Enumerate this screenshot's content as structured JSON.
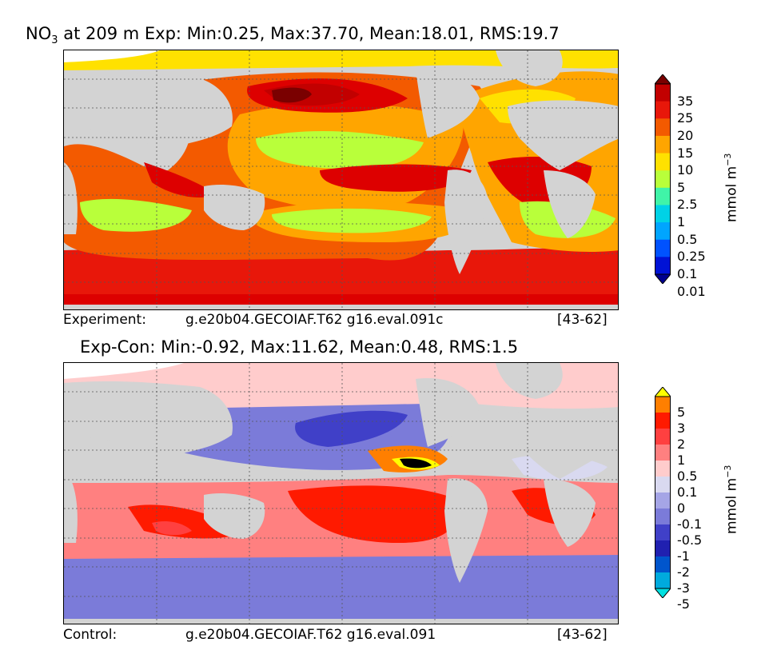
{
  "top": {
    "title_prefix": "NO",
    "title_sub": "3",
    "title_rest": " at 209 m Exp: Min:0.25, Max:37.70, Mean:18.01, RMS:19.7",
    "caption_label": "Experiment:",
    "caption_case": "g.e20b04.GECOIAF.T62 g16.eval.091c",
    "caption_years": "[43-62]",
    "colorbar": {
      "labels": [
        "35",
        "25",
        "20",
        "15",
        "10",
        "5",
        "2.5",
        "1",
        "0.5",
        "0.25",
        "0.1",
        "0.01"
      ],
      "colors": [
        "#7a0000",
        "#c20000",
        "#e8170a",
        "#f35a00",
        "#ffa500",
        "#ffe100",
        "#b9ff3a",
        "#40f4a8",
        "#00d2e6",
        "#00a5ff",
        "#0052ff",
        "#0012d6",
        "#00008f"
      ],
      "unit": "mmol m",
      "unit_exp": "−3"
    }
  },
  "bottom": {
    "title": "Exp-Con: Min:-0.92, Max:11.62, Mean:0.48, RMS:1.5",
    "caption_label": "Control:",
    "caption_case": "g.e20b04.GECOIAF.T62 g16.eval.091",
    "caption_years": "[43-62]",
    "colorbar": {
      "labels": [
        "5",
        "3",
        "2",
        "1",
        "0.5",
        "0.1",
        "0",
        "-0.1",
        "-0.5",
        "-1",
        "-2",
        "-3",
        "-5"
      ],
      "colors": [
        "#ffff00",
        "#ff7f00",
        "#ff1a00",
        "#ff4040",
        "#ff8080",
        "#ffcccc",
        "#d9d9f0",
        "#a5a5e6",
        "#7b7bd9",
        "#4040c8",
        "#2020b0",
        "#0055cc",
        "#00aadd",
        "#00e0e0"
      ],
      "unit": "mmol m",
      "unit_exp": "−3"
    }
  }
}
